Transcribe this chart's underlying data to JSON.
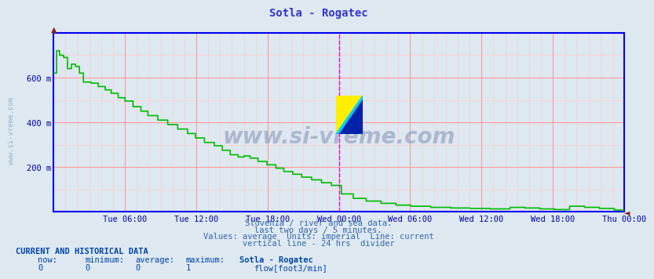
{
  "title": "Sotla - Rogatec",
  "title_color": "#3333cc",
  "bg_color": "#dde8f0",
  "plot_bg_color": "#dde8f0",
  "grid_color_major": "#ff9999",
  "grid_color_minor": "#ffcccc",
  "axis_color": "#0000ee",
  "line_color": "#00bb00",
  "vline_color": "#ee00ee",
  "tick_label_color": "#0000aa",
  "watermark_color": "#7799bb",
  "watermark_side_color": "#7799bb",
  "ymax": 800,
  "ymin": 0,
  "xlabel_times": [
    "Tue 06:00",
    "Tue 12:00",
    "Tue 18:00",
    "Wed 00:00",
    "Wed 06:00",
    "Wed 12:00",
    "Wed 18:00",
    "Thu 00:00"
  ],
  "n_points": 576,
  "subtitle_lines": [
    "Slovenia / river and sea data.",
    "last two days / 5 minutes.",
    "Values: average  Units: imperial  Line: current",
    "vertical line - 24 hrs  divider"
  ],
  "footer_bold": "CURRENT AND HISTORICAL DATA",
  "footer_headers": [
    "now:",
    "minimum:",
    "average:",
    "maximum:",
    "Sotla - Rogatec"
  ],
  "footer_values": [
    "0",
    "0",
    "0",
    "1"
  ],
  "footer_legend_label": "flow[foot3/min]",
  "legend_color": "#00aa00",
  "watermark_text": "www.si-vreme.com"
}
